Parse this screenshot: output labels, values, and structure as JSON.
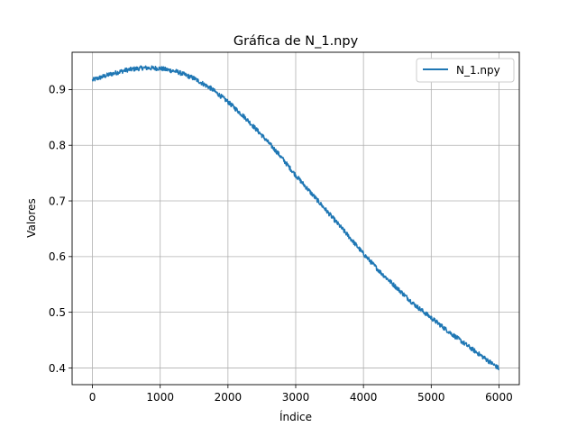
{
  "chart_data": {
    "type": "line",
    "title": "Gráfica de N_1.npy",
    "xlabel": "Índice",
    "ylabel": "Valores",
    "xlim": [
      -300,
      6300
    ],
    "ylim": [
      0.37,
      0.967
    ],
    "xticks": [
      0,
      1000,
      2000,
      3000,
      4000,
      5000,
      6000
    ],
    "xtick_labels": [
      "0",
      "1000",
      "2000",
      "3000",
      "4000",
      "5000",
      "6000"
    ],
    "yticks": [
      0.4,
      0.5,
      0.6,
      0.7,
      0.8,
      0.9
    ],
    "ytick_labels": [
      "0.4",
      "0.5",
      "0.6",
      "0.7",
      "0.8",
      "0.9"
    ],
    "grid": true,
    "legend": "top-right",
    "series": [
      {
        "name": "N_1.npy",
        "color": "#1f77b4",
        "noise_amplitude": 0.004,
        "x": [
          0,
          250,
          500,
          750,
          1000,
          1250,
          1500,
          1750,
          2000,
          2250,
          2500,
          2750,
          3000,
          3250,
          3500,
          3750,
          4000,
          4250,
          4500,
          4750,
          5000,
          5250,
          5500,
          5750,
          6000
        ],
        "y": [
          0.917,
          0.927,
          0.935,
          0.939,
          0.938,
          0.932,
          0.92,
          0.902,
          0.878,
          0.85,
          0.818,
          0.784,
          0.746,
          0.711,
          0.676,
          0.641,
          0.605,
          0.572,
          0.543,
          0.514,
          0.49,
          0.466,
          0.443,
          0.421,
          0.399
        ]
      }
    ]
  }
}
